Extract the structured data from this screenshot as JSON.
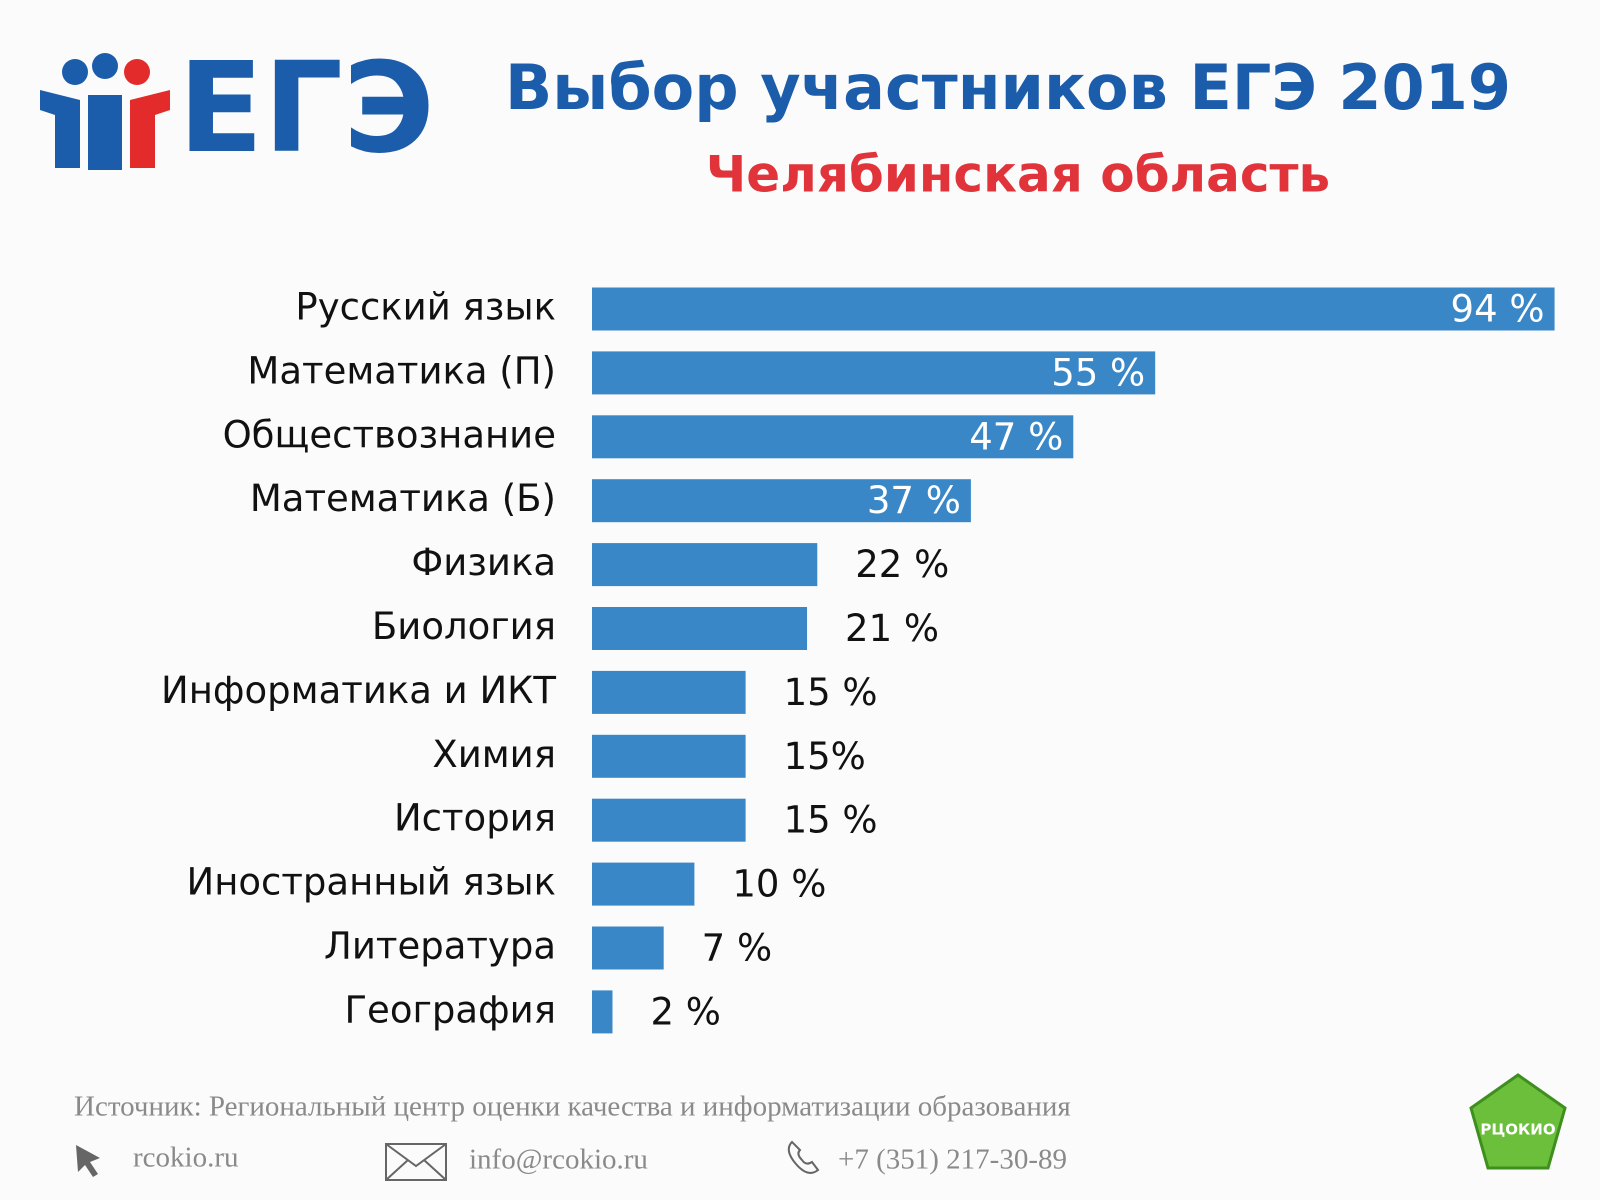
{
  "logo": "ЕГЭ",
  "chart_data": {
    "type": "hbar",
    "title": "Выбор участников ЕГЭ 2019",
    "subtitle": "Челябинская область",
    "categories": [
      "Русский язык",
      "Математика (П)",
      "Обществознание",
      "Математика (Б)",
      "Физика",
      "Биология",
      "Информатика и ИКТ",
      "Химия",
      "История",
      "Иностранный язык",
      "Литература",
      "География"
    ],
    "values": [
      94,
      55,
      47,
      37,
      22,
      21,
      15,
      15,
      15,
      10,
      7,
      2
    ],
    "value_labels": [
      "94 %",
      "55 %",
      "47 %",
      "37 %",
      "22 %",
      "21 %",
      "15 %",
      "15%",
      "15 %",
      "10 %",
      "7 %",
      "2 %"
    ],
    "color": "#3a87c8"
  },
  "footer": {
    "source": "Источник: Региональный центр оценки качества и информатизации образования",
    "site": "rcokio.ru",
    "email": "info@rcokio.ru",
    "phone": "+7 (351) 217-30-89",
    "badge": "РЦОКИО"
  }
}
